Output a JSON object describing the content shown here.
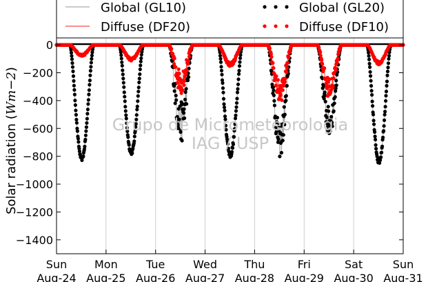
{
  "chart_data": {
    "type": "scatter",
    "ylabel_text": "Solar radiation (",
    "ylabel_unit": "Wm−2",
    "ylabel_close": ")",
    "ylim": [
      -1500,
      50
    ],
    "yticks": [
      0,
      -200,
      -400,
      -600,
      -800,
      -1000,
      -1200,
      -1400
    ],
    "xlim": [
      0,
      7
    ],
    "xticks": [
      {
        "pos": 0,
        "day": "Sun",
        "date": "Aug-24"
      },
      {
        "pos": 1,
        "day": "Mon",
        "date": "Aug-25"
      },
      {
        "pos": 2,
        "day": "Tue",
        "date": "Aug-26"
      },
      {
        "pos": 3,
        "day": "Wed",
        "date": "Aug-27"
      },
      {
        "pos": 4,
        "day": "Thu",
        "date": "Aug-28"
      },
      {
        "pos": 5,
        "day": "Fri",
        "date": "Aug-29"
      },
      {
        "pos": 6,
        "day": "Sat",
        "date": "Aug-30"
      },
      {
        "pos": 7,
        "day": "Sun",
        "date": "Aug-31"
      }
    ],
    "grid": "vertical",
    "legend": {
      "placement": "top",
      "entries": [
        {
          "label": "Global (GL10)",
          "style": "line",
          "color": "#aaaaaa"
        },
        {
          "label": "Diffuse (DF20)",
          "style": "line",
          "color": "#ff4444"
        },
        {
          "label": "Global (GL20)",
          "style": "dots",
          "color": "#000000"
        },
        {
          "label": "Diffuse (DF10)",
          "style": "dots",
          "color": "#ff0000"
        }
      ]
    },
    "watermark": [
      "Grupo de Micrometeorologia",
      "IAG / USP"
    ],
    "series": [
      {
        "key": "global",
        "color": "#000000",
        "line_color": "#aaaaaa",
        "days": [
          {
            "day": 0,
            "peak": -820,
            "noise": 10
          },
          {
            "day": 1,
            "peak": -775,
            "noise": 12
          },
          {
            "day": 2,
            "peak": -560,
            "noise": 150
          },
          {
            "day": 3,
            "peak": -790,
            "noise": 20
          },
          {
            "day": 4,
            "peak": -690,
            "noise": 120
          },
          {
            "day": 5,
            "peak": -560,
            "noise": 110
          },
          {
            "day": 6,
            "peak": -835,
            "noise": 20
          }
        ]
      },
      {
        "key": "diffuse",
        "color": "#ff0000",
        "line_color": "#ff4444",
        "days": [
          {
            "day": 0,
            "peak": -75,
            "noise": 8
          },
          {
            "day": 1,
            "peak": -105,
            "noise": 10
          },
          {
            "day": 2,
            "peak": -260,
            "noise": 90
          },
          {
            "day": 3,
            "peak": -140,
            "noise": 15
          },
          {
            "day": 4,
            "peak": -340,
            "noise": 80
          },
          {
            "day": 5,
            "peak": -310,
            "noise": 70
          },
          {
            "day": 6,
            "peak": -130,
            "noise": 12
          }
        ]
      }
    ]
  }
}
